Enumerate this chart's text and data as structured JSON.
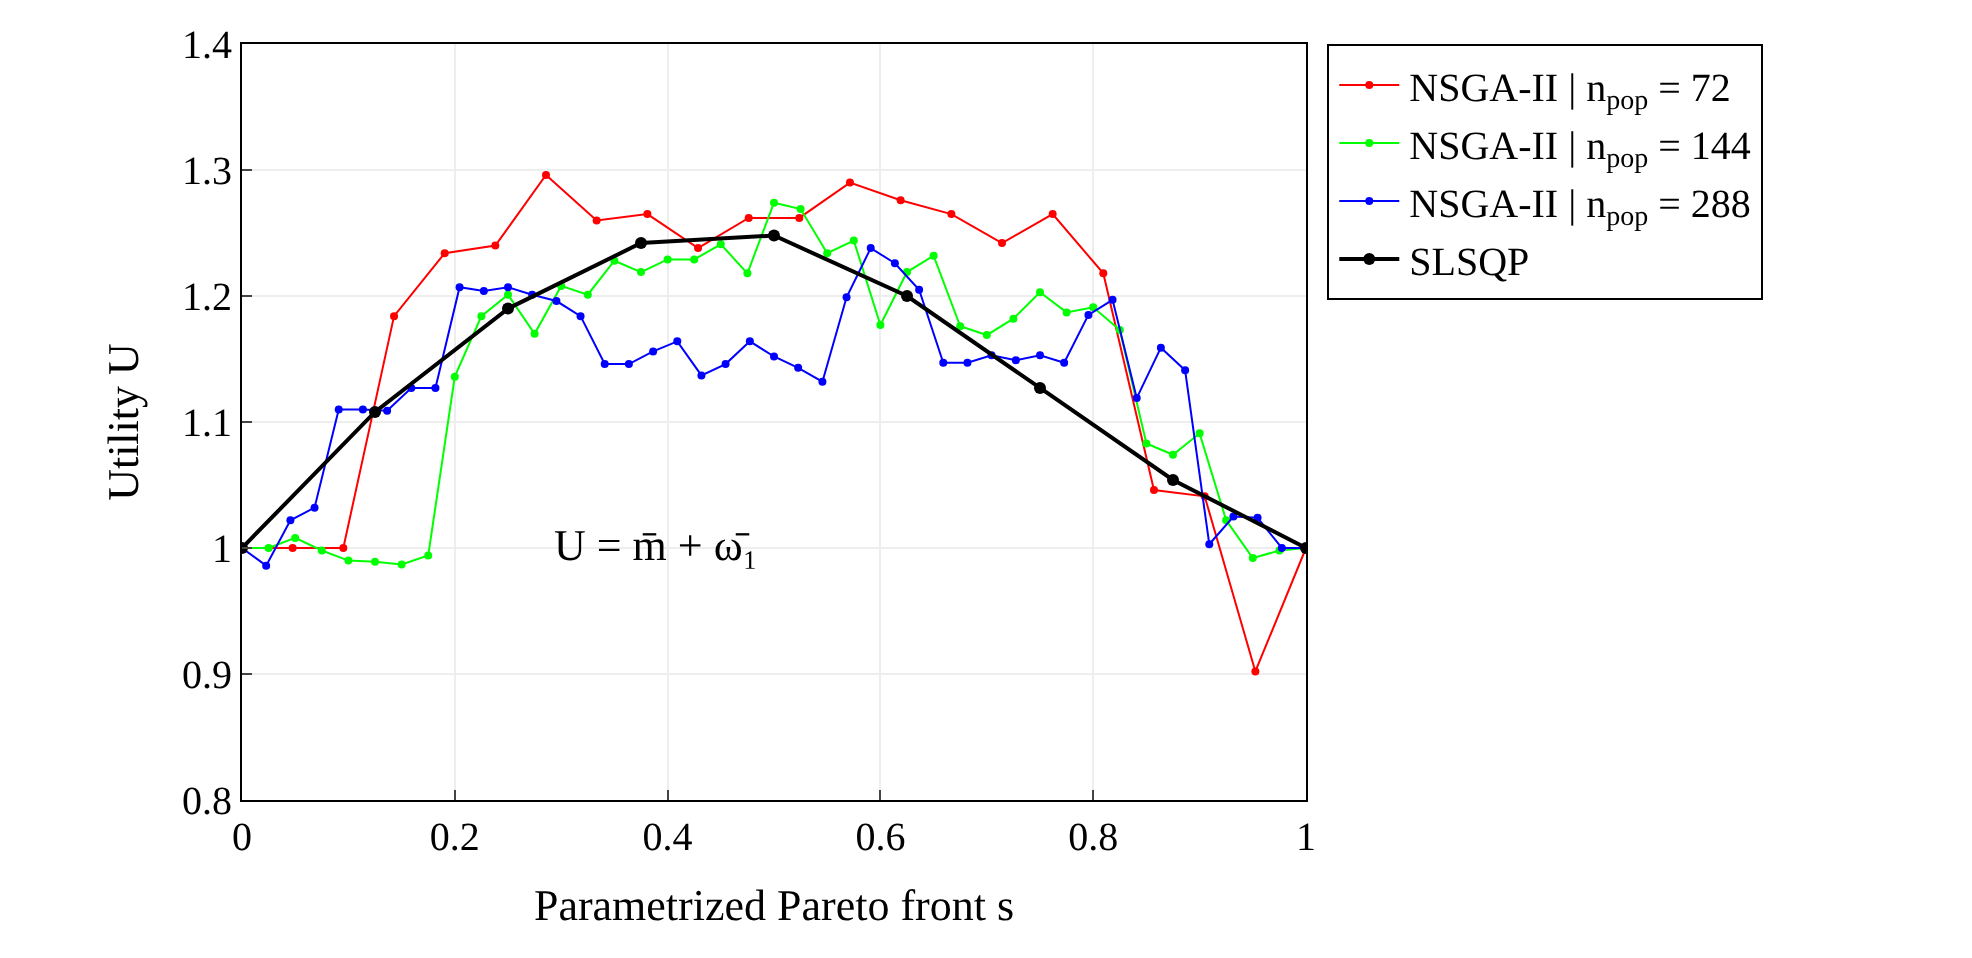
{
  "chart_data": {
    "type": "line",
    "xlabel": "Parametrized Pareto front s",
    "ylabel": "Utility U",
    "xlim": [
      0,
      1
    ],
    "xticks": [
      0,
      0.2,
      0.4,
      0.6,
      0.8,
      1
    ],
    "ylim": [
      0.8,
      1.4
    ],
    "yticks": [
      0.8,
      0.9,
      1,
      1.1,
      1.2,
      1.3,
      1.4
    ],
    "grid": true,
    "legend": "top right",
    "marker": "circle",
    "line_style": "solid",
    "annotations": [
      "U = m̄ + ω̄₁"
    ],
    "series": [
      {
        "name": "NSGA-II | n$_{pop}$ = 72",
        "color": "#ff0000",
        "x": [
          0,
          0.0476,
          0.0952,
          0.1429,
          0.1905,
          0.2381,
          0.2857,
          0.3333,
          0.381,
          0.4286,
          0.4762,
          0.5238,
          0.5714,
          0.619,
          0.6667,
          0.7143,
          0.7619,
          0.8095,
          0.8571,
          0.9048,
          0.9524,
          1
        ],
        "values": [
          1.0,
          1.0,
          1.0,
          1.184,
          1.234,
          1.24,
          1.296,
          1.26,
          1.265,
          1.238,
          1.262,
          1.262,
          1.29,
          1.276,
          1.265,
          1.242,
          1.265,
          1.218,
          1.046,
          1.041,
          0.902,
          1.0
        ]
      },
      {
        "name": "NSGA-II | n$_{pop}$ = 144",
        "color": "#00ff00",
        "x": [
          0,
          0.025,
          0.05,
          0.075,
          0.1,
          0.125,
          0.15,
          0.175,
          0.2,
          0.225,
          0.25,
          0.275,
          0.3,
          0.325,
          0.35,
          0.375,
          0.4,
          0.425,
          0.45,
          0.475,
          0.5,
          0.525,
          0.55,
          0.575,
          0.6,
          0.625,
          0.65,
          0.675,
          0.7,
          0.725,
          0.75,
          0.775,
          0.8,
          0.825,
          0.85,
          0.875,
          0.9,
          0.925,
          0.95,
          0.975,
          1
        ],
        "values": [
          1.0,
          1.0,
          1.008,
          0.998,
          0.99,
          0.989,
          0.987,
          0.994,
          1.136,
          1.184,
          1.201,
          1.17,
          1.208,
          1.201,
          1.228,
          1.219,
          1.229,
          1.229,
          1.241,
          1.218,
          1.274,
          1.269,
          1.234,
          1.244,
          1.177,
          1.219,
          1.232,
          1.176,
          1.169,
          1.182,
          1.203,
          1.187,
          1.191,
          1.173,
          1.083,
          1.074,
          1.091,
          1.022,
          0.992,
          0.998,
          1.0
        ]
      },
      {
        "name": "NSGA-II | n$_{pop}$ = 288",
        "color": "#0000ff",
        "x": [
          0,
          0.0227,
          0.0455,
          0.0682,
          0.0909,
          0.1136,
          0.1364,
          0.1591,
          0.1818,
          0.2045,
          0.2273,
          0.25,
          0.2727,
          0.2955,
          0.3182,
          0.3409,
          0.3636,
          0.3864,
          0.4091,
          0.4318,
          0.4545,
          0.4773,
          0.5,
          0.5227,
          0.5455,
          0.5682,
          0.5909,
          0.6136,
          0.6364,
          0.6591,
          0.6818,
          0.7045,
          0.7273,
          0.75,
          0.7727,
          0.7955,
          0.8182,
          0.8409,
          0.8636,
          0.8864,
          0.9091,
          0.9318,
          0.9545,
          0.9773,
          1
        ],
        "values": [
          1.0,
          0.986,
          1.022,
          1.032,
          1.11,
          1.11,
          1.109,
          1.127,
          1.127,
          1.207,
          1.204,
          1.207,
          1.201,
          1.196,
          1.184,
          1.146,
          1.146,
          1.156,
          1.164,
          1.137,
          1.146,
          1.164,
          1.152,
          1.143,
          1.132,
          1.199,
          1.238,
          1.226,
          1.205,
          1.147,
          1.147,
          1.153,
          1.149,
          1.153,
          1.147,
          1.185,
          1.197,
          1.119,
          1.159,
          1.141,
          1.003,
          1.025,
          1.024,
          1.0,
          1.0
        ]
      },
      {
        "name": "SLSQP",
        "color": "#000000",
        "x": [
          0,
          0.125,
          0.25,
          0.375,
          0.5,
          0.625,
          0.75,
          0.875,
          1
        ],
        "values": [
          1.0,
          1.108,
          1.19,
          1.242,
          1.248,
          1.2,
          1.127,
          1.054,
          1.0
        ]
      }
    ]
  }
}
